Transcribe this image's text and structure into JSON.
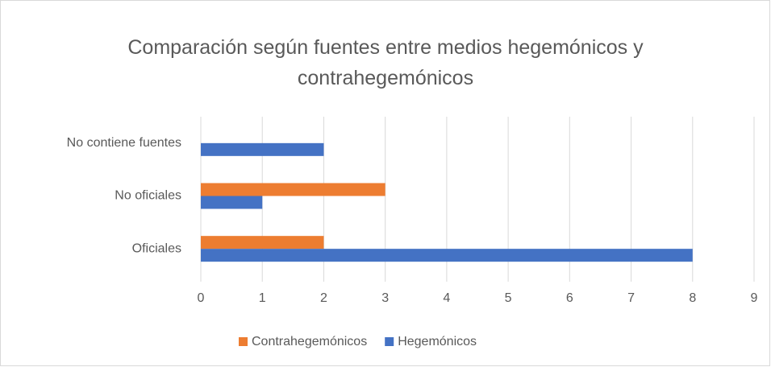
{
  "chart_data": {
    "type": "hbar",
    "title": "Comparación según fuentes entre medios hegemónicos y contrahegemónicos",
    "categories": [
      "Oficiales",
      "No oficiales",
      "No contiene fuentes"
    ],
    "series": [
      {
        "name": "Contrahegemónicos",
        "color": "#ed7d31",
        "values": [
          2,
          3,
          0
        ]
      },
      {
        "name": "Hegemónicos",
        "color": "#4472c4",
        "values": [
          8,
          1,
          2
        ]
      }
    ],
    "xlim": [
      0,
      9
    ],
    "xticks": [
      0,
      1,
      2,
      3,
      4,
      5,
      6,
      7,
      8,
      9
    ],
    "grid": true,
    "legend": "bottom"
  }
}
